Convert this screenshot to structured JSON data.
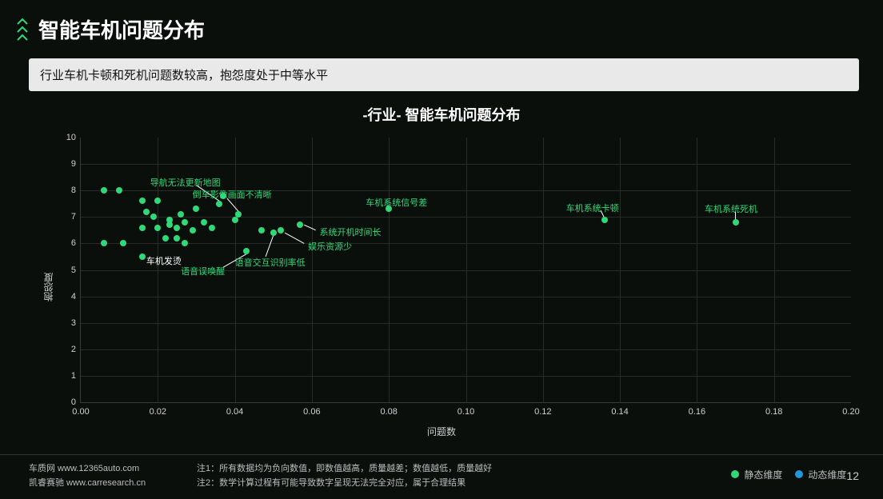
{
  "header": {
    "title": "智能车机问题分布",
    "chevron_color": "#2fd97a"
  },
  "subtitle": "行业车机卡顿和死机问题数较高，抱怨度处于中等水平",
  "chart": {
    "title": "-行业-  智能车机问题分布",
    "type": "scatter",
    "xlabel": "问题数",
    "ylabel": "抱怨度",
    "xlim": [
      0.0,
      0.2
    ],
    "ylim": [
      0,
      10
    ],
    "xtick_step": 0.02,
    "ytick_step": 1,
    "xtick_decimals": 2,
    "background": "#0a0f0c",
    "grid_color": "#2a2a2a",
    "axis_color": "#3a3a3a",
    "tick_fontsize": 11,
    "tick_color": "#d0d0d0",
    "point_color": "#2fd97a",
    "point_radius": 4,
    "label_color_green": "#2fd97a",
    "label_color_white": "#ffffff",
    "points": [
      {
        "x": 0.006,
        "y": 8.0
      },
      {
        "x": 0.01,
        "y": 8.0
      },
      {
        "x": 0.006,
        "y": 6.0
      },
      {
        "x": 0.011,
        "y": 6.0
      },
      {
        "x": 0.016,
        "y": 7.6
      },
      {
        "x": 0.02,
        "y": 7.6
      },
      {
        "x": 0.017,
        "y": 7.2
      },
      {
        "x": 0.019,
        "y": 7.0
      },
      {
        "x": 0.016,
        "y": 6.6
      },
      {
        "x": 0.02,
        "y": 6.6
      },
      {
        "x": 0.016,
        "y": 5.5
      },
      {
        "x": 0.023,
        "y": 6.9
      },
      {
        "x": 0.023,
        "y": 6.7
      },
      {
        "x": 0.025,
        "y": 6.6
      },
      {
        "x": 0.026,
        "y": 7.1
      },
      {
        "x": 0.027,
        "y": 6.8
      },
      {
        "x": 0.029,
        "y": 6.5
      },
      {
        "x": 0.027,
        "y": 6.0
      },
      {
        "x": 0.025,
        "y": 6.2
      },
      {
        "x": 0.022,
        "y": 6.2
      },
      {
        "x": 0.03,
        "y": 7.3
      },
      {
        "x": 0.032,
        "y": 6.8
      },
      {
        "x": 0.034,
        "y": 6.6
      },
      {
        "x": 0.036,
        "y": 7.5
      },
      {
        "x": 0.037,
        "y": 7.8
      },
      {
        "x": 0.04,
        "y": 6.9
      },
      {
        "x": 0.041,
        "y": 7.1
      },
      {
        "x": 0.043,
        "y": 5.7
      },
      {
        "x": 0.047,
        "y": 6.5
      },
      {
        "x": 0.05,
        "y": 6.4
      },
      {
        "x": 0.052,
        "y": 6.5
      },
      {
        "x": 0.057,
        "y": 6.7
      },
      {
        "x": 0.08,
        "y": 7.3
      },
      {
        "x": 0.136,
        "y": 6.9
      },
      {
        "x": 0.17,
        "y": 6.8
      }
    ],
    "labels": [
      {
        "text": "导航无法更新地图",
        "lx": 0.018,
        "ly": 8.3,
        "color": "green",
        "line": {
          "from": [
            0.03,
            8.2
          ],
          "to": [
            0.036,
            7.6
          ]
        }
      },
      {
        "text": "倒车影像画面不清晰",
        "lx": 0.029,
        "ly": 7.85,
        "color": "green",
        "line": {
          "from": [
            0.038,
            7.7
          ],
          "to": [
            0.041,
            7.2
          ]
        }
      },
      {
        "text": "车机发烫",
        "lx": 0.017,
        "ly": 5.35,
        "color": "white",
        "line": null
      },
      {
        "text": "语音误唤醒",
        "lx": 0.026,
        "ly": 4.95,
        "color": "green",
        "line": {
          "from": [
            0.037,
            5.1
          ],
          "to": [
            0.043,
            5.6
          ]
        }
      },
      {
        "text": "语音交互识别率低",
        "lx": 0.04,
        "ly": 5.3,
        "color": "green",
        "line": {
          "from": [
            0.048,
            5.5
          ],
          "to": [
            0.05,
            6.3
          ]
        }
      },
      {
        "text": "娱乐资源少",
        "lx": 0.059,
        "ly": 5.9,
        "color": "green",
        "line": {
          "from": [
            0.058,
            6.0
          ],
          "to": [
            0.053,
            6.4
          ]
        }
      },
      {
        "text": "系统开机时间长",
        "lx": 0.062,
        "ly": 6.45,
        "color": "green",
        "line": {
          "from": [
            0.061,
            6.5
          ],
          "to": [
            0.058,
            6.7
          ]
        }
      },
      {
        "text": "车机系统信号差",
        "lx": 0.074,
        "ly": 7.55,
        "color": "green",
        "line": {
          "from": [
            0.08,
            7.45
          ],
          "to": [
            0.08,
            7.35
          ]
        }
      },
      {
        "text": "车机系统卡顿",
        "lx": 0.126,
        "ly": 7.35,
        "color": "green",
        "line": {
          "from": [
            0.135,
            7.25
          ],
          "to": [
            0.136,
            6.95
          ]
        }
      },
      {
        "text": "车机系统死机",
        "lx": 0.162,
        "ly": 7.3,
        "color": "green",
        "line": {
          "from": [
            0.17,
            7.2
          ],
          "to": [
            0.17,
            6.85
          ]
        }
      }
    ]
  },
  "legend": {
    "items": [
      {
        "label": "静态维度",
        "color": "#2fd97a"
      },
      {
        "label": "动态维度",
        "color": "#2196d9"
      }
    ]
  },
  "footer": {
    "site1": "车质网 www.12365auto.com",
    "site2": "凯睿赛驰 www.carresearch.cn",
    "note1": "注1：所有数据均为负向数值，即数值越高，质量越差；数值越低，质量越好",
    "note2": "注2：数学计算过程有可能导致数字呈现无法完全对应，属于合理结果",
    "page": "12"
  }
}
